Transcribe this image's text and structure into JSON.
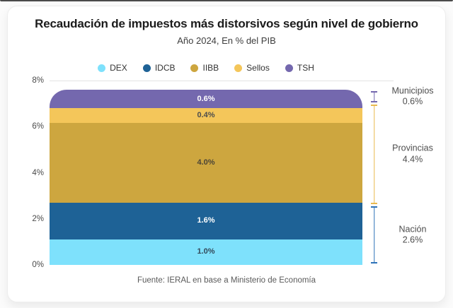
{
  "title": "Recaudación de impuestos más distorsivos según nivel de gobierno",
  "subtitle": "Año 2024, En % del PIB",
  "source": "Fuente: IERAL en base a Ministerio de Economía",
  "chart_data": {
    "type": "bar",
    "stacked": true,
    "title": "Recaudación de impuestos más distorsivos según nivel de gobierno",
    "subtitle": "Año 2024, En % del PIB",
    "unit": "% del PIB",
    "ylim": [
      0,
      8
    ],
    "y_axis": {
      "ticks": [
        {
          "label": "0%",
          "value": 0
        },
        {
          "label": "2%",
          "value": 2
        },
        {
          "label": "4%",
          "value": 4
        },
        {
          "label": "6%",
          "value": 6
        },
        {
          "label": "8%",
          "value": 8
        }
      ]
    },
    "legend_position": "top",
    "series": [
      {
        "name": "DEX",
        "value": 1.0,
        "label": "1.0%",
        "color": "#7EE1FC",
        "label_color": "#33495A"
      },
      {
        "name": "IDCB",
        "value": 1.6,
        "label": "1.6%",
        "color": "#1E6296",
        "label_color": "#FFFFFF"
      },
      {
        "name": "IIBB",
        "value": 4.0,
        "label": "4.0%",
        "color": "#CDA63F",
        "label_color": "#4B4436"
      },
      {
        "name": "Sellos",
        "value": 0.4,
        "label": "0.4%",
        "color": "#F4C65A",
        "label_color": "#4D4D4D"
      },
      {
        "name": "TSH",
        "value": 0.6,
        "label": "0.6%",
        "color": "#7468AE",
        "label_color": "#FFFFFF"
      }
    ],
    "annotations": [
      {
        "label": "Municipios",
        "value": "0.6%",
        "from": 7.0,
        "to": 7.6,
        "color": "#7468AE"
      },
      {
        "label": "Provincias",
        "value": "4.4%",
        "from": 2.6,
        "to": 7.0,
        "color": "#E9B94F"
      },
      {
        "label": "Nación",
        "value": "2.6%",
        "from": 0.0,
        "to": 2.6,
        "color": "#2D72B8"
      }
    ]
  }
}
